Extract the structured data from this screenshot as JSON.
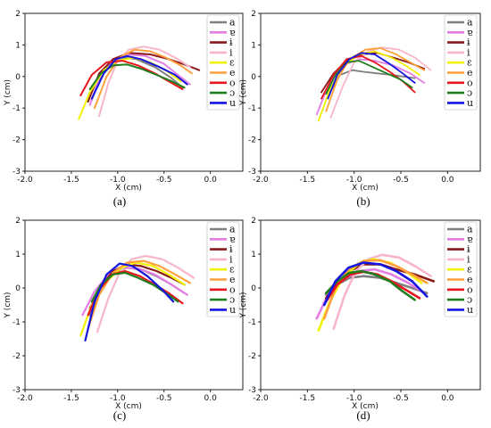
{
  "legend_labels": [
    "a",
    "ɐ",
    "ɨ",
    "i",
    "ɛ",
    "e",
    "o",
    "ɔ",
    "u"
  ],
  "colors": {
    "a": "#7f7f7f",
    "ɐ": "#e37de3",
    "ɨ": "#8b1a1a",
    "i": "#f7b6c8",
    "ɛ": "#f2f200",
    "e": "#ffa03c",
    "o": "#e8151c",
    "ɔ": "#1f7f1f",
    "u": "#1414e0"
  },
  "chart_data": [
    {
      "type": "line",
      "panel_label": "(a)",
      "xlabel": "X (cm)",
      "ylabel": "Y (cm)",
      "xlim": [
        -2.0,
        0.35
      ],
      "ylim": [
        -3,
        2
      ],
      "xticks": [
        "-2.0",
        "-1.5",
        "-1.0",
        "-0.5",
        "0.0"
      ],
      "yticks": [
        "-3",
        "-2",
        "-1",
        "0",
        "1",
        "2"
      ],
      "legend": "top-right",
      "series": [
        {
          "name": "a",
          "x": [
            -1.28,
            -1.18,
            -1.08,
            -0.95,
            -0.8,
            -0.6,
            -0.42,
            -0.3
          ],
          "y": [
            -0.75,
            0.05,
            0.45,
            0.6,
            0.55,
            0.3,
            -0.05,
            -0.35
          ]
        },
        {
          "name": "ɐ",
          "x": [
            -1.3,
            -1.2,
            -1.05,
            -0.9,
            -0.7,
            -0.5,
            -0.35,
            -0.22
          ],
          "y": [
            -0.9,
            -0.05,
            0.5,
            0.7,
            0.65,
            0.4,
            0.05,
            -0.25
          ]
        },
        {
          "name": "ɨ",
          "x": [
            -1.32,
            -1.2,
            -1.05,
            -0.88,
            -0.65,
            -0.45,
            -0.28,
            -0.12
          ],
          "y": [
            -0.8,
            0.1,
            0.55,
            0.75,
            0.7,
            0.55,
            0.38,
            0.2
          ]
        },
        {
          "name": "i",
          "x": [
            -1.2,
            -1.1,
            -1.0,
            -0.88,
            -0.72,
            -0.55,
            -0.38,
            -0.22
          ],
          "y": [
            -1.25,
            -0.2,
            0.5,
            0.85,
            0.95,
            0.85,
            0.6,
            0.3
          ]
        },
        {
          "name": "ɛ",
          "x": [
            -1.42,
            -1.3,
            -1.15,
            -1.0,
            -0.82,
            -0.65,
            -0.48,
            -0.32
          ],
          "y": [
            -1.35,
            -0.5,
            0.2,
            0.5,
            0.6,
            0.45,
            0.2,
            -0.15
          ]
        },
        {
          "name": "e",
          "x": [
            -1.25,
            -1.12,
            -0.98,
            -0.82,
            -0.65,
            -0.48,
            -0.32,
            -0.2
          ],
          "y": [
            -1.0,
            0.0,
            0.6,
            0.85,
            0.8,
            0.6,
            0.35,
            0.1
          ]
        },
        {
          "name": "o",
          "x": [
            -1.4,
            -1.28,
            -1.12,
            -0.95,
            -0.78,
            -0.6,
            -0.45,
            -0.3
          ],
          "y": [
            -0.6,
            0.05,
            0.45,
            0.5,
            0.35,
            0.1,
            -0.15,
            -0.4
          ]
        },
        {
          "name": "ɔ",
          "x": [
            -1.3,
            -1.18,
            -1.05,
            -0.9,
            -0.75,
            -0.58,
            -0.42,
            -0.28
          ],
          "y": [
            -0.4,
            0.1,
            0.35,
            0.38,
            0.25,
            0.05,
            -0.15,
            -0.35
          ]
        },
        {
          "name": "u",
          "x": [
            -1.28,
            -1.15,
            -1.02,
            -0.9,
            -0.75,
            -0.55,
            -0.38,
            -0.25
          ],
          "y": [
            -0.7,
            0.1,
            0.55,
            0.65,
            0.55,
            0.3,
            0.05,
            -0.25
          ]
        }
      ]
    },
    {
      "type": "line",
      "panel_label": "(b)",
      "xlabel": "X (cm)",
      "ylabel": "Y (cm)",
      "xlim": [
        -2.0,
        0.35
      ],
      "ylim": [
        -3,
        2
      ],
      "xticks": [
        "-2.0",
        "-1.5",
        "-1.0",
        "-0.5",
        "0.0"
      ],
      "yticks": [
        "-3",
        "-2",
        "-1",
        "0",
        "1",
        "2"
      ],
      "legend": "top-right",
      "series": [
        {
          "name": "a",
          "x": [
            -1.28,
            -1.15,
            -1.02,
            -0.9,
            -0.75,
            -0.6,
            -0.48,
            -0.35
          ],
          "y": [
            -0.6,
            0.05,
            0.2,
            0.15,
            0.1,
            0.05,
            0.0,
            -0.05
          ]
        },
        {
          "name": "ɐ",
          "x": [
            -1.4,
            -1.28,
            -1.12,
            -0.95,
            -0.78,
            -0.58,
            -0.4,
            -0.25
          ],
          "y": [
            -1.2,
            -0.3,
            0.35,
            0.55,
            0.5,
            0.35,
            0.1,
            -0.2
          ]
        },
        {
          "name": "ɨ",
          "x": [
            -1.35,
            -1.22,
            -1.08,
            -0.92,
            -0.75,
            -0.58,
            -0.42,
            -0.25
          ],
          "y": [
            -0.5,
            0.1,
            0.5,
            0.7,
            0.75,
            0.6,
            0.45,
            0.25
          ]
        },
        {
          "name": "i",
          "x": [
            -1.25,
            -1.12,
            -1.0,
            -0.85,
            -0.7,
            -0.52,
            -0.35,
            -0.18
          ],
          "y": [
            -1.3,
            -0.3,
            0.45,
            0.8,
            0.92,
            0.85,
            0.6,
            0.2
          ]
        },
        {
          "name": "ɛ",
          "x": [
            -1.38,
            -1.26,
            -1.12,
            -0.95,
            -0.78,
            -0.6,
            -0.45,
            -0.3
          ],
          "y": [
            -1.4,
            -0.4,
            0.3,
            0.7,
            0.8,
            0.6,
            0.35,
            0.05
          ]
        },
        {
          "name": "e",
          "x": [
            -1.3,
            -1.18,
            -1.05,
            -0.88,
            -0.72,
            -0.55,
            -0.4,
            -0.25
          ],
          "y": [
            -1.1,
            -0.1,
            0.55,
            0.85,
            0.9,
            0.7,
            0.45,
            0.2
          ]
        },
        {
          "name": "o",
          "x": [
            -1.35,
            -1.22,
            -1.08,
            -0.92,
            -0.78,
            -0.62,
            -0.48,
            -0.35
          ],
          "y": [
            -0.7,
            0.05,
            0.55,
            0.65,
            0.45,
            0.15,
            -0.15,
            -0.5
          ]
        },
        {
          "name": "ɔ",
          "x": [
            -1.3,
            -1.2,
            -1.08,
            -0.95,
            -0.8,
            -0.65,
            -0.5,
            -0.38
          ],
          "y": [
            -0.55,
            0.05,
            0.45,
            0.5,
            0.3,
            0.1,
            -0.1,
            -0.35
          ]
        },
        {
          "name": "u",
          "x": [
            -1.28,
            -1.18,
            -1.05,
            -0.92,
            -0.78,
            -0.62,
            -0.48,
            -0.35
          ],
          "y": [
            -0.7,
            0.05,
            0.55,
            0.75,
            0.7,
            0.4,
            0.1,
            -0.2
          ]
        }
      ]
    },
    {
      "type": "line",
      "panel_label": "(c)",
      "xlabel": "X (cm)",
      "ylabel": "Y (cm)",
      "xlim": [
        -2.0,
        0.35
      ],
      "ylim": [
        -3,
        2
      ],
      "xticks": [
        "-2.0",
        "-1.5",
        "-1.0",
        "-0.5",
        "0.0"
      ],
      "yticks": [
        "-3",
        "-2",
        "-1",
        "0",
        "1",
        "2"
      ],
      "legend": "top-right",
      "series": [
        {
          "name": "a",
          "x": [
            -1.3,
            -1.18,
            -1.05,
            -0.9,
            -0.75,
            -0.58,
            -0.42,
            -0.28
          ],
          "y": [
            -0.8,
            0.0,
            0.45,
            0.6,
            0.55,
            0.35,
            0.1,
            -0.15
          ]
        },
        {
          "name": "ɐ",
          "x": [
            -1.38,
            -1.25,
            -1.1,
            -0.95,
            -0.78,
            -0.6,
            -0.42,
            -0.25
          ],
          "y": [
            -0.8,
            -0.1,
            0.4,
            0.6,
            0.58,
            0.4,
            0.1,
            -0.2
          ]
        },
        {
          "name": "ɨ",
          "x": [
            -1.3,
            -1.18,
            -1.05,
            -0.9,
            -0.75,
            -0.58,
            -0.42,
            -0.28
          ],
          "y": [
            -0.6,
            0.05,
            0.5,
            0.7,
            0.65,
            0.5,
            0.3,
            0.1
          ]
        },
        {
          "name": "i",
          "x": [
            -1.22,
            -1.1,
            -0.98,
            -0.85,
            -0.7,
            -0.52,
            -0.35,
            -0.18
          ],
          "y": [
            -1.3,
            -0.3,
            0.45,
            0.85,
            0.95,
            0.85,
            0.6,
            0.3
          ]
        },
        {
          "name": "ɛ",
          "x": [
            -1.4,
            -1.28,
            -1.12,
            -0.96,
            -0.8,
            -0.62,
            -0.45,
            -0.28
          ],
          "y": [
            -1.4,
            -0.5,
            0.2,
            0.6,
            0.75,
            0.65,
            0.4,
            0.1
          ]
        },
        {
          "name": "e",
          "x": [
            -1.32,
            -1.2,
            -1.05,
            -0.9,
            -0.72,
            -0.55,
            -0.38,
            -0.22
          ],
          "y": [
            -1.2,
            -0.2,
            0.45,
            0.75,
            0.8,
            0.65,
            0.4,
            0.15
          ]
        },
        {
          "name": "o",
          "x": [
            -1.32,
            -1.2,
            -1.06,
            -0.92,
            -0.76,
            -0.6,
            -0.45,
            -0.3
          ],
          "y": [
            -0.8,
            -0.05,
            0.4,
            0.5,
            0.35,
            0.1,
            -0.15,
            -0.45
          ]
        },
        {
          "name": "ɔ",
          "x": [
            -1.28,
            -1.18,
            -1.05,
            -0.92,
            -0.78,
            -0.62,
            -0.48,
            -0.35
          ],
          "y": [
            -0.4,
            0.1,
            0.4,
            0.45,
            0.3,
            0.1,
            -0.15,
            -0.4
          ]
        },
        {
          "name": "u",
          "x": [
            -1.35,
            -1.25,
            -1.12,
            -0.98,
            -0.84,
            -0.68,
            -0.52,
            -0.4
          ],
          "y": [
            -1.55,
            -0.4,
            0.4,
            0.72,
            0.65,
            0.35,
            -0.05,
            -0.4
          ]
        }
      ]
    },
    {
      "type": "line",
      "panel_label": "(d)",
      "xlabel": "X (cm)",
      "ylabel": "Y (cm)",
      "xlim": [
        -2.0,
        0.35
      ],
      "ylim": [
        -3,
        2
      ],
      "xticks": [
        "-2.0",
        "-1.5",
        "-1.0",
        "-0.5",
        "0.0"
      ],
      "yticks": [
        "-3",
        "-2",
        "-1",
        "0",
        "1",
        "2"
      ],
      "legend": "top-right",
      "series": [
        {
          "name": "a",
          "x": [
            -1.3,
            -1.18,
            -1.05,
            -0.9,
            -0.72,
            -0.55,
            -0.38,
            -0.22
          ],
          "y": [
            -0.2,
            0.1,
            0.3,
            0.35,
            0.3,
            0.15,
            0.0,
            -0.15
          ]
        },
        {
          "name": "ɐ",
          "x": [
            -1.4,
            -1.28,
            -1.12,
            -0.95,
            -0.78,
            -0.6,
            -0.42,
            -0.25
          ],
          "y": [
            -0.9,
            -0.2,
            0.25,
            0.5,
            0.55,
            0.4,
            0.15,
            -0.15
          ]
        },
        {
          "name": "ɨ",
          "x": [
            -1.3,
            -1.18,
            -1.05,
            -0.9,
            -0.72,
            -0.55,
            -0.35,
            -0.15
          ],
          "y": [
            -0.3,
            0.15,
            0.5,
            0.7,
            0.7,
            0.55,
            0.4,
            0.2
          ]
        },
        {
          "name": "i",
          "x": [
            -1.22,
            -1.1,
            -0.98,
            -0.85,
            -0.7,
            -0.52,
            -0.35,
            -0.18
          ],
          "y": [
            -1.2,
            -0.2,
            0.5,
            0.85,
            0.98,
            0.9,
            0.65,
            0.35
          ]
        },
        {
          "name": "ɛ",
          "x": [
            -1.38,
            -1.26,
            -1.12,
            -0.96,
            -0.8,
            -0.62,
            -0.45,
            -0.28
          ],
          "y": [
            -1.25,
            -0.4,
            0.3,
            0.7,
            0.85,
            0.75,
            0.5,
            0.15
          ]
        },
        {
          "name": "e",
          "x": [
            -1.32,
            -1.2,
            -1.06,
            -0.9,
            -0.72,
            -0.55,
            -0.38,
            -0.22
          ],
          "y": [
            -0.9,
            0.0,
            0.55,
            0.8,
            0.82,
            0.65,
            0.4,
            0.15
          ]
        },
        {
          "name": "o",
          "x": [
            -1.3,
            -1.18,
            -1.04,
            -0.9,
            -0.75,
            -0.6,
            -0.45,
            -0.3
          ],
          "y": [
            -0.4,
            0.1,
            0.4,
            0.48,
            0.4,
            0.2,
            -0.05,
            -0.3
          ]
        },
        {
          "name": "ɔ",
          "x": [
            -1.3,
            -1.18,
            -1.05,
            -0.92,
            -0.78,
            -0.62,
            -0.48,
            -0.35
          ],
          "y": [
            -0.15,
            0.2,
            0.45,
            0.5,
            0.4,
            0.2,
            -0.1,
            -0.35
          ]
        },
        {
          "name": "u",
          "x": [
            -1.32,
            -1.2,
            -1.06,
            -0.9,
            -0.72,
            -0.55,
            -0.38,
            -0.22
          ],
          "y": [
            -0.5,
            0.2,
            0.6,
            0.75,
            0.7,
            0.5,
            0.2,
            -0.25
          ]
        }
      ]
    }
  ]
}
